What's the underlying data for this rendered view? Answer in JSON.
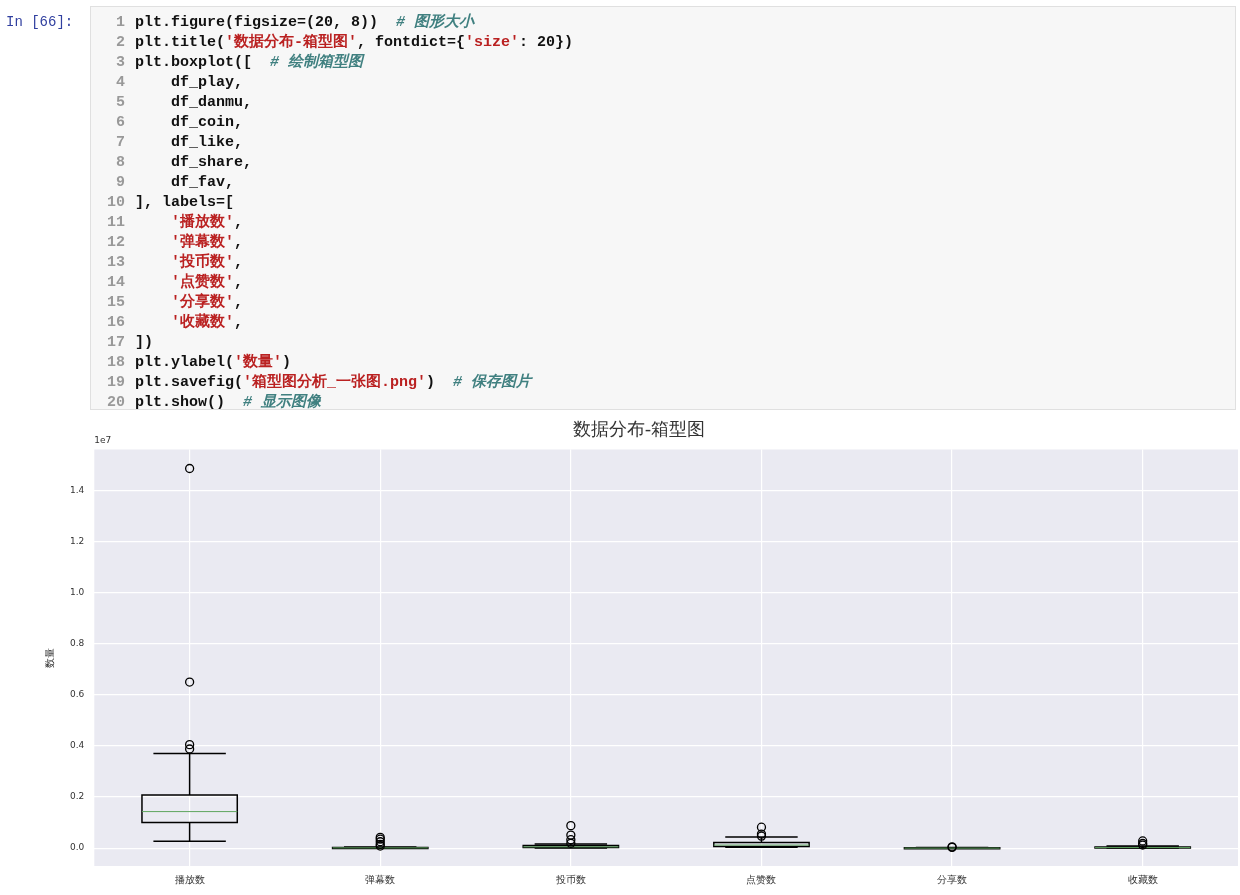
{
  "chart_data": {
    "type": "box",
    "title": "数据分布-箱型图",
    "ylabel": "数量",
    "categories": [
      "播放数",
      "弹幕数",
      "投币数",
      "点赞数",
      "分享数",
      "收藏数"
    ],
    "boxes": [
      {
        "low": 0.027,
        "q1": 0.1,
        "median": 0.143,
        "q3": 0.208,
        "high": 0.37,
        "outliers": [
          0.388,
          0.405,
          0.65,
          1.486
        ]
      },
      {
        "low": 0,
        "q1": 0,
        "median": 0.001,
        "q3": 0.002,
        "high": 0.004,
        "outliers": [
          0.008,
          0.015,
          0.025,
          0.035,
          0.042
        ]
      },
      {
        "low": 0,
        "q1": 0.002,
        "median": 0.005,
        "q3": 0.01,
        "high": 0.016,
        "outliers": [
          0.019,
          0.033,
          0.051,
          0.088
        ]
      },
      {
        "low": 0.003,
        "q1": 0.006,
        "median": 0.012,
        "q3": 0.022,
        "high": 0.044,
        "outliers": [
          0.047,
          0.055,
          0.082
        ]
      },
      {
        "low": 0,
        "q1": 0,
        "median": 0,
        "q3": 0.001,
        "high": 0.002,
        "outliers": [
          0.003,
          0.005
        ]
      },
      {
        "low": 0,
        "q1": 0.001,
        "median": 0.002,
        "q3": 0.004,
        "high": 0.008,
        "outliers": [
          0.012,
          0.018,
          0.028
        ]
      }
    ],
    "ylim": [
      -0.07,
      1.56
    ],
    "yticks": [
      {
        "value": 0,
        "label": "0.0"
      },
      0.2,
      0.4,
      0.6,
      0.8,
      {
        "value": 1,
        "label": "1.0"
      },
      1.2,
      1.4
    ],
    "grid": true,
    "annotations": [
      "In [66]:",
      "1 plt.figure(figsize=(20, 8))  # 图形大小",
      "2 plt.title('数据分布-箱型图', fontdict={'size': 20})",
      "3 plt.boxplot([  # 绘制箱型图",
      "4     df_play,",
      "5     df_danmu,",
      "6     df_coin,",
      "7     df_like,",
      "8     df_share,",
      "9     df_fav,",
      "10 ], labels=[",
      "11     '播放数',",
      "12     '弹幕数',",
      "13     '投币数',",
      "14     '点赞数',",
      "15     '分享数',",
      "16     '收藏数',",
      "17 ])",
      "18 plt.ylabel('数量')",
      "19 plt.savefig('箱型图分析_一张图.png')  # 保存图片",
      "20 plt.show()  # 显示图像",
      "1e7"
    ]
  }
}
